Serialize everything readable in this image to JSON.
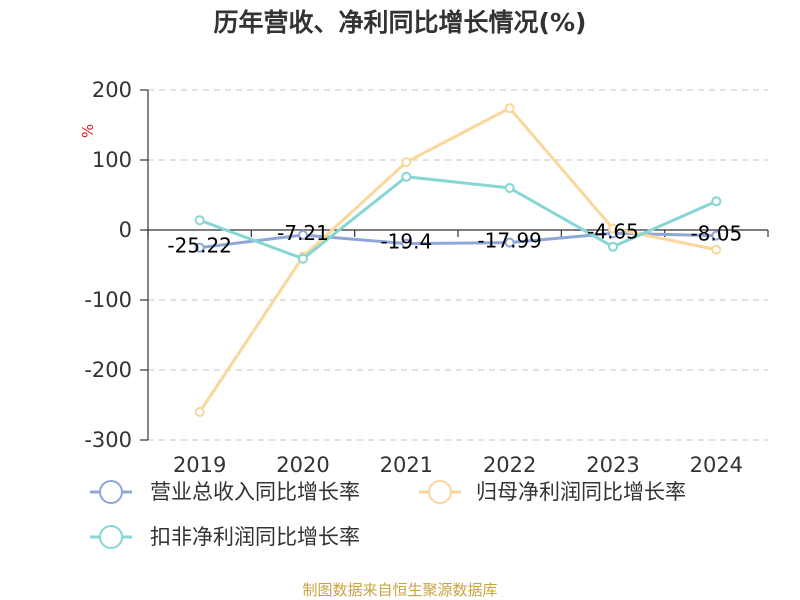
{
  "chart_data": {
    "type": "line",
    "title": "历年营收、净利同比增长情况(%)",
    "ylabel": "%",
    "categories": [
      "2019",
      "2020",
      "2021",
      "2022",
      "2023",
      "2024"
    ],
    "ylim": [
      -300,
      200
    ],
    "yticks": [
      200,
      100,
      0,
      -100,
      -200,
      -300
    ],
    "grid": true,
    "legend": "bottom",
    "series": [
      {
        "name": "营业总收入同比增长率",
        "color": "#8ea7d7",
        "values": [
          -25.22,
          -7.21,
          -19.4,
          -17.99,
          -4.65,
          -8.05
        ],
        "data_labels": true
      },
      {
        "name": "归母净利润同比增长率",
        "color": "#fad79a",
        "values": [
          -260,
          -38,
          97,
          174,
          2,
          -28
        ],
        "data_labels": false
      },
      {
        "name": "扣非净利润同比增长率",
        "color": "#86d6d4",
        "values": [
          14,
          -41,
          76,
          60,
          -24,
          41
        ],
        "data_labels": false
      }
    ]
  },
  "footer": {
    "source_note": "制图数据来自恒生聚源数据库"
  },
  "colors": {
    "unit_label": "#e02020",
    "source_note": "#c9a441",
    "axis": "#333333",
    "grid": "#c6c6c6"
  }
}
